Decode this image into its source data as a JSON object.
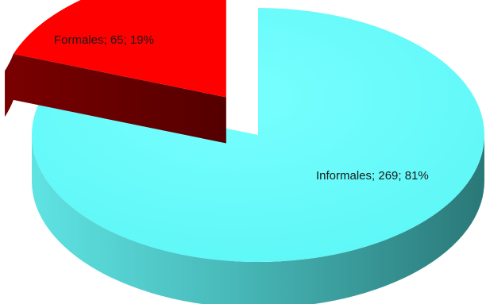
{
  "chart_data": {
    "type": "pie",
    "style": "3d-exploded",
    "title": "",
    "categories": [
      "Formales",
      "Informales"
    ],
    "values": [
      65,
      269
    ],
    "percentages": [
      19,
      81
    ],
    "data_labels": [
      "Formales; 65; 19%",
      "Informales; 269; 81%"
    ],
    "colors": {
      "Formales": {
        "top": "#ff0000",
        "side": "#6e0000"
      },
      "Informales": {
        "top": "#66ffff",
        "side": "#3fbcbc"
      }
    },
    "legend": "none",
    "grid": false
  }
}
